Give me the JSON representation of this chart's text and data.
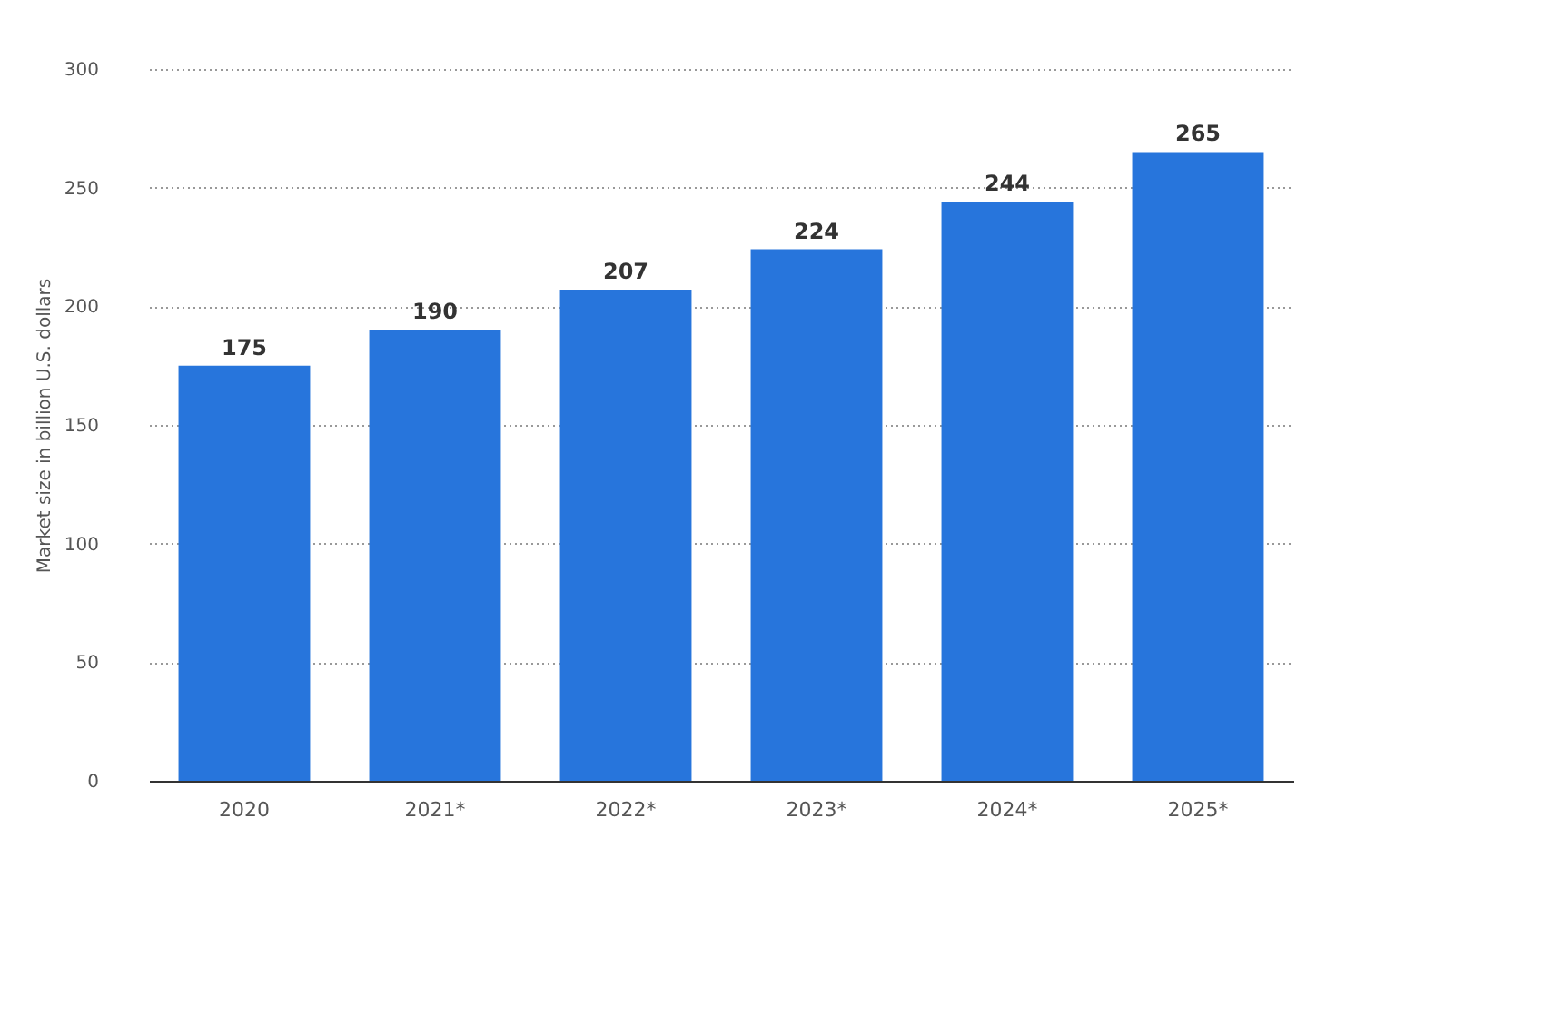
{
  "chart_data": {
    "type": "bar",
    "ylabel": "Market size in billion U.S. dollars",
    "categories": [
      "2020",
      "2021*",
      "2022*",
      "2023*",
      "2024*",
      "2025*"
    ],
    "values": [
      175,
      190,
      207,
      224,
      244,
      265
    ],
    "color": "#2775dc",
    "ylim": [
      0,
      300
    ],
    "yticks": [
      0,
      50,
      100,
      150,
      200,
      250,
      300
    ],
    "grid": "y",
    "data_labels": true
  }
}
